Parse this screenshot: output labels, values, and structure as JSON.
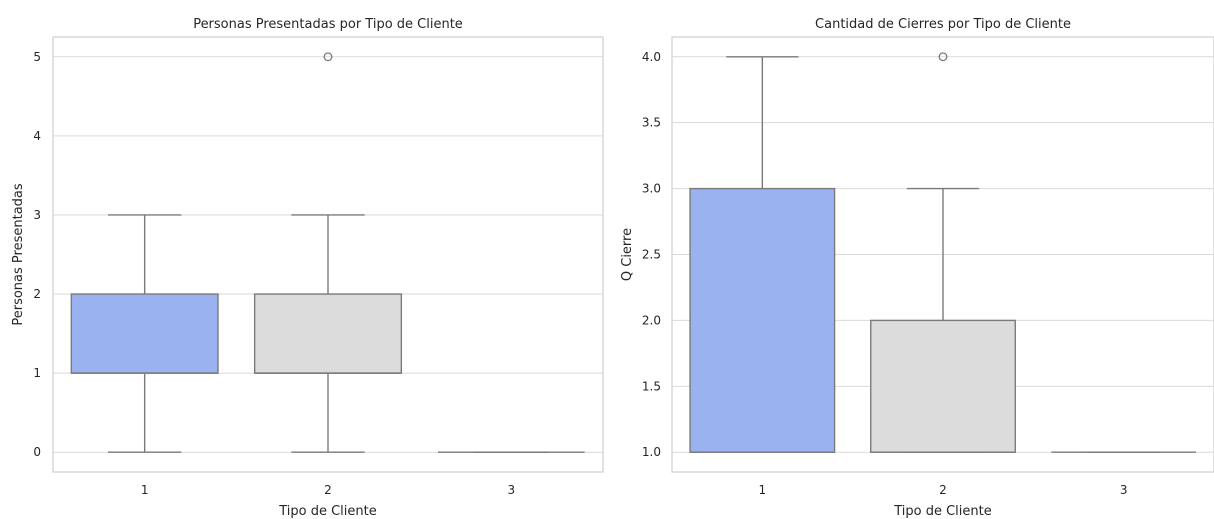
{
  "chart_data": [
    {
      "type": "box",
      "title": "Personas Presentadas por Tipo de Cliente",
      "xlabel": "Tipo de Cliente",
      "ylabel": "Personas Presentadas",
      "categories": [
        "1",
        "2",
        "3"
      ],
      "yticks": [
        0,
        1,
        2,
        3,
        4,
        5
      ],
      "ylim": [
        -0.25,
        5.25
      ],
      "grid": true,
      "boxes": [
        {
          "category": "1",
          "whisker_low": 0,
          "q1": 1,
          "median": 1,
          "q3": 2,
          "whisker_high": 3,
          "outliers": [],
          "color": "#9ab3f0"
        },
        {
          "category": "2",
          "whisker_low": 0,
          "q1": 1,
          "median": 1,
          "q3": 2,
          "whisker_high": 3,
          "outliers": [
            5
          ],
          "color": "#dcdcdc"
        },
        {
          "category": "3",
          "whisker_low": 0,
          "q1": 0,
          "median": 0,
          "q3": 0,
          "whisker_high": 0,
          "outliers": [],
          "color": "#e7b9a0"
        }
      ]
    },
    {
      "type": "box",
      "title": "Cantidad de Cierres por Tipo de Cliente",
      "xlabel": "Tipo de Cliente",
      "ylabel": "Q Cierre",
      "categories": [
        "1",
        "2",
        "3"
      ],
      "yticks": [
        "1.0",
        "1.5",
        "2.0",
        "2.5",
        "3.0",
        "3.5",
        "4.0"
      ],
      "ylim": [
        0.85,
        4.15
      ],
      "grid": true,
      "boxes": [
        {
          "category": "1",
          "whisker_low": 1,
          "q1": 1,
          "median": 1,
          "q3": 3,
          "whisker_high": 4,
          "outliers": [],
          "color": "#9ab3f0"
        },
        {
          "category": "2",
          "whisker_low": 1,
          "q1": 1,
          "median": 1,
          "q3": 2,
          "whisker_high": 3,
          "outliers": [
            4
          ],
          "color": "#dcdcdc"
        },
        {
          "category": "3",
          "whisker_low": 1,
          "q1": 1,
          "median": 1,
          "q3": 1,
          "whisker_high": 1,
          "outliers": [],
          "color": "#e7b9a0"
        }
      ]
    }
  ]
}
